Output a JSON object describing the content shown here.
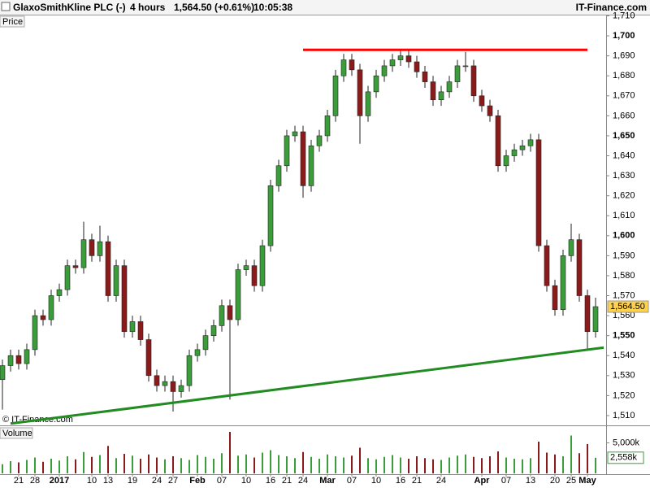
{
  "header": {
    "instrument": "GlaxoSmithKline PLC (-)",
    "period": "4 hours",
    "quote": "1,564.50 (+0.61%)",
    "time": "10:05:38",
    "site": "IT-Finance.com"
  },
  "chart_data": {
    "type": "candlestick",
    "price_label": "Price",
    "volume_title": "Volume",
    "copyright": "© IT-Finance.com",
    "up_color": "#3a9d3a",
    "down_color": "#8b1a1a",
    "categories": [
      null,
      null,
      "21",
      null,
      "28",
      null,
      null,
      "2017",
      null,
      null,
      null,
      "10",
      null,
      "13",
      null,
      null,
      "19",
      null,
      null,
      "24",
      null,
      "27",
      null,
      null,
      "Feb",
      null,
      null,
      "07",
      null,
      null,
      "10",
      null,
      null,
      "16",
      null,
      "21",
      null,
      "24",
      null,
      null,
      "Mar",
      null,
      null,
      "07",
      null,
      null,
      "10",
      null,
      null,
      "16",
      null,
      "21",
      null,
      null,
      "24",
      null,
      null,
      null,
      null,
      "Apr",
      null,
      null,
      "07",
      null,
      null,
      "13",
      null,
      null,
      "20",
      null,
      "25",
      null,
      "May",
      null
    ],
    "open": [
      1528,
      1535,
      1540,
      1536,
      1543,
      1560,
      1558,
      1570,
      1573,
      1585,
      1584,
      1598,
      1590,
      1597,
      1570,
      1585,
      1552,
      1557,
      1548,
      1530,
      1525,
      1527,
      1522,
      1525,
      1540,
      1543,
      1550,
      1555,
      1565,
      1558,
      1583,
      1585,
      1575,
      1595,
      1625,
      1635,
      1650,
      1652,
      1625,
      1645,
      1650,
      1660,
      1680,
      1688,
      1683,
      1660,
      1672,
      1680,
      1685,
      1688,
      1690,
      1687,
      1682,
      1677,
      1668,
      1672,
      1677,
      1685,
      1685,
      1670,
      1665,
      1660,
      1635,
      1640,
      1643,
      1645,
      1648,
      1595,
      1575,
      1563,
      1590,
      1598,
      1570,
      1552
    ],
    "high": [
      1538,
      1543,
      1543,
      1546,
      1563,
      1563,
      1573,
      1576,
      1588,
      1588,
      1607,
      1601,
      1605,
      1600,
      1588,
      1588,
      1560,
      1560,
      1551,
      1533,
      1530,
      1530,
      1528,
      1543,
      1546,
      1553,
      1558,
      1568,
      1568,
      1586,
      1588,
      1588,
      1598,
      1628,
      1638,
      1653,
      1655,
      1655,
      1648,
      1653,
      1663,
      1683,
      1691,
      1691,
      1686,
      1675,
      1683,
      1688,
      1691,
      1693,
      1693,
      1690,
      1685,
      1680,
      1675,
      1680,
      1688,
      1692,
      1688,
      1673,
      1668,
      1663,
      1643,
      1646,
      1648,
      1651,
      1651,
      1598,
      1578,
      1593,
      1606,
      1601,
      1573,
      1569
    ],
    "low": [
      1513,
      1532,
      1533,
      1533,
      1540,
      1555,
      1555,
      1567,
      1570,
      1581,
      1581,
      1587,
      1587,
      1567,
      1567,
      1549,
      1549,
      1545,
      1527,
      1522,
      1522,
      1512,
      1519,
      1522,
      1537,
      1540,
      1547,
      1552,
      1518,
      1555,
      1580,
      1572,
      1572,
      1592,
      1622,
      1632,
      1647,
      1619,
      1622,
      1642,
      1647,
      1657,
      1677,
      1680,
      1646,
      1657,
      1669,
      1677,
      1682,
      1685,
      1684,
      1679,
      1674,
      1665,
      1665,
      1669,
      1674,
      1682,
      1667,
      1662,
      1657,
      1632,
      1632,
      1637,
      1640,
      1642,
      1592,
      1572,
      1560,
      1560,
      1587,
      1567,
      1543,
      1549
    ],
    "close": [
      1535,
      1540,
      1536,
      1543,
      1560,
      1558,
      1570,
      1573,
      1585,
      1584,
      1598,
      1590,
      1597,
      1570,
      1585,
      1552,
      1557,
      1548,
      1530,
      1525,
      1527,
      1522,
      1525,
      1540,
      1543,
      1550,
      1555,
      1565,
      1558,
      1583,
      1585,
      1575,
      1595,
      1625,
      1635,
      1650,
      1652,
      1625,
      1645,
      1650,
      1660,
      1680,
      1688,
      1683,
      1660,
      1672,
      1680,
      1685,
      1688,
      1690,
      1687,
      1682,
      1677,
      1668,
      1672,
      1677,
      1685,
      1685,
      1670,
      1665,
      1660,
      1635,
      1640,
      1643,
      1645,
      1648,
      1595,
      1575,
      1563,
      1590,
      1598,
      1570,
      1552,
      1564.5
    ],
    "close_label": "1,564.50",
    "volume": [
      1500,
      2000,
      1800,
      2200,
      2600,
      1900,
      2400,
      2100,
      2800,
      2300,
      3500,
      2700,
      3000,
      4500,
      2500,
      3200,
      2900,
      2400,
      3100,
      2600,
      2300,
      2800,
      2500,
      2200,
      3000,
      2700,
      2400,
      3300,
      6800,
      2900,
      3100,
      2600,
      3400,
      3800,
      3000,
      2800,
      2500,
      3500,
      2700,
      2400,
      3100,
      2800,
      2600,
      2900,
      4200,
      2500,
      2300,
      2700,
      3000,
      2600,
      2400,
      2800,
      2500,
      2300,
      2200,
      2600,
      2900,
      3100,
      2700,
      2500,
      2800,
      3600,
      2600,
      2400,
      2300,
      2500,
      5200,
      3400,
      3100,
      2800,
      6200,
      3300,
      4800,
      2558
    ],
    "volume_label": "2,558k",
    "ylim": [
      1505.5,
      1709.8
    ],
    "yticks": [
      {
        "value": 1510,
        "label": "1,510"
      },
      {
        "value": 1520,
        "label": "1,520"
      },
      {
        "value": 1530,
        "label": "1,530"
      },
      {
        "value": 1540,
        "label": "1,540"
      },
      {
        "value": 1550,
        "label": "1,550"
      },
      {
        "value": 1560,
        "label": "1,560"
      },
      {
        "value": 1570,
        "label": "1,570"
      },
      {
        "value": 1580,
        "label": "1,580"
      },
      {
        "value": 1590,
        "label": "1,590"
      },
      {
        "value": 1600,
        "label": "1,600"
      },
      {
        "value": 1610,
        "label": "1,610"
      },
      {
        "value": 1620,
        "label": "1,620"
      },
      {
        "value": 1630,
        "label": "1,630"
      },
      {
        "value": 1640,
        "label": "1,640"
      },
      {
        "value": 1650,
        "label": "1,650"
      },
      {
        "value": 1660,
        "label": "1,660"
      },
      {
        "value": 1670,
        "label": "1,670"
      },
      {
        "value": 1680,
        "label": "1,680"
      },
      {
        "value": 1690,
        "label": "1,690"
      },
      {
        "value": 1700,
        "label": "1,700"
      },
      {
        "value": 1710,
        "label": "1,710"
      }
    ],
    "volume_ylim": [
      0,
      7200
    ],
    "volume_yticks": [
      {
        "value": 5000,
        "label": "5,000k"
      }
    ],
    "lines": [
      {
        "color": "#ff0000",
        "x": [
          37,
          72
        ],
        "values": [
          1693,
          1693
        ]
      },
      {
        "color": "#228b22",
        "x": [
          1,
          74
        ],
        "values": [
          1506,
          1544
        ]
      }
    ]
  }
}
